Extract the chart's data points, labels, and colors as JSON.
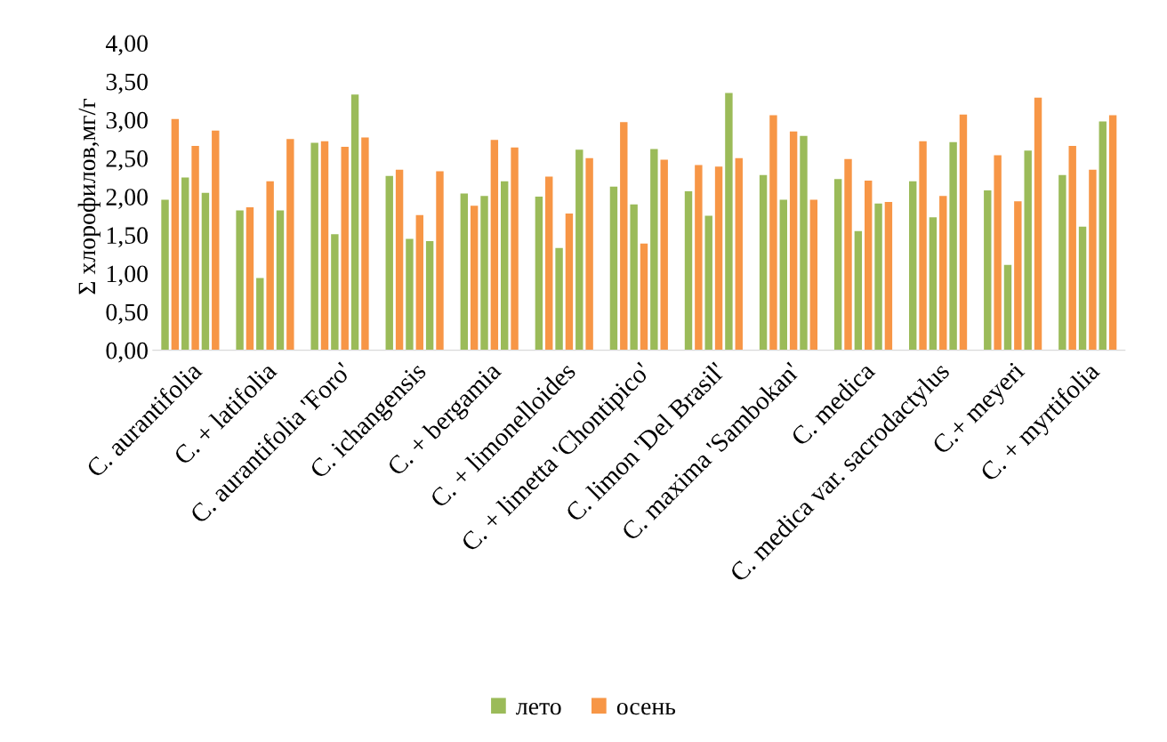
{
  "chart_data": {
    "type": "bar",
    "ylabel": "Σ хлорофилов,мг/г",
    "categories": [
      "C. aurantifolia",
      "C. + latifolia",
      "C. aurantifolia 'Foro'",
      "C. ichangensis",
      "C. + bergamia",
      "C. + limonelloides",
      "C. + limetta 'Chontipico'",
      "C. limon 'Del Brasil'",
      "C. maxima 'Sambokan'",
      "C. medica",
      "C. medica var. sacrodactylus",
      "C.+ meyeri",
      "C. + myrtifolia"
    ],
    "series": [
      {
        "name": "лето",
        "color": "#9bbb59",
        "values": [
          1.96,
          1.82,
          2.7,
          2.27,
          2.04,
          2.0,
          2.13,
          2.07,
          2.28,
          2.23,
          2.2,
          2.08,
          2.28
        ]
      },
      {
        "name": "осень",
        "color": "#f79646",
        "values": [
          3.01,
          1.86,
          2.72,
          2.35,
          1.88,
          2.26,
          2.97,
          2.41,
          3.06,
          2.49,
          2.72,
          2.54,
          2.66
        ]
      },
      {
        "color": "#9bbb59",
        "values": [
          2.25,
          0.94,
          1.51,
          1.45,
          2.01,
          1.33,
          1.9,
          1.75,
          1.96,
          1.55,
          1.73,
          1.11,
          1.61
        ]
      },
      {
        "color": "#f79646",
        "values": [
          2.66,
          2.2,
          2.65,
          1.76,
          2.74,
          1.78,
          1.39,
          2.39,
          2.85,
          2.21,
          2.01,
          1.94,
          2.35
        ]
      },
      {
        "color": "#9bbb59",
        "values": [
          2.05,
          1.82,
          3.33,
          1.42,
          2.2,
          2.61,
          2.62,
          3.35,
          2.79,
          1.91,
          2.71,
          2.6,
          2.98
        ]
      },
      {
        "color": "#f79646",
        "values": [
          2.86,
          2.75,
          2.77,
          2.33,
          2.64,
          2.5,
          2.48,
          2.5,
          1.96,
          1.93,
          3.07,
          3.29,
          3.06
        ]
      }
    ],
    "ylim": [
      0,
      4
    ],
    "yticks": [
      {
        "value": 0,
        "label": "0,00"
      },
      {
        "value": 0.5,
        "label": "0,50"
      },
      {
        "value": 1,
        "label": "1,00"
      },
      {
        "value": 1.5,
        "label": "1,50"
      },
      {
        "value": 2,
        "label": "2,00"
      },
      {
        "value": 2.5,
        "label": "2,50"
      },
      {
        "value": 3,
        "label": "3,00"
      },
      {
        "value": 3.5,
        "label": "3,50"
      },
      {
        "value": 4,
        "label": "4,00"
      }
    ],
    "grid": false,
    "legend": "bottom"
  }
}
